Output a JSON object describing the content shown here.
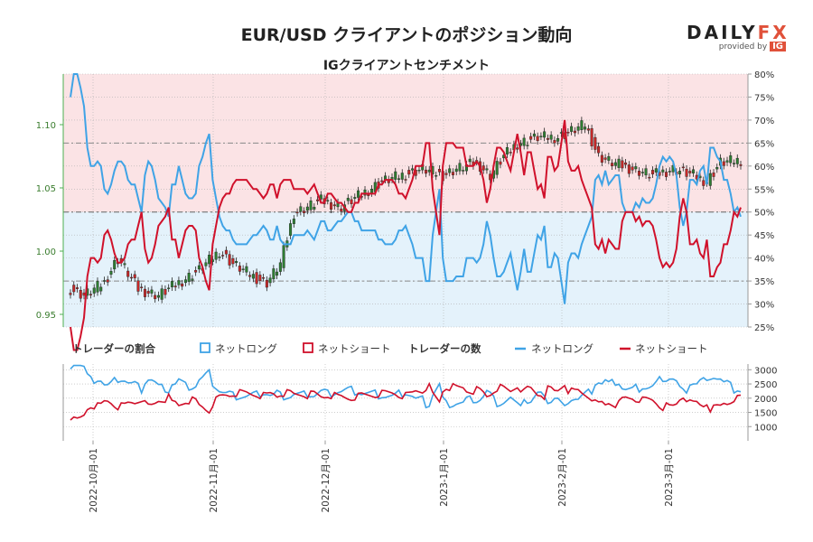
{
  "title": "EUR/USD クライアントのポジション動向",
  "subtitle": "IGクライアントセンチメント",
  "logo": {
    "brand_main": "DAILY",
    "brand_fx": "FX",
    "provided_by": "provided by",
    "ig": "IG"
  },
  "chart_data": [
    {
      "type": "candlestick+line",
      "title": "IGクライアントセンチメント",
      "left_axis": {
        "ticks": [
          "0.95",
          "1.00",
          "1.05",
          "1.10"
        ],
        "ylim": [
          0.94,
          1.14
        ]
      },
      "right_axis": {
        "ticks": [
          "25%",
          "30%",
          "35%",
          "40%",
          "45%",
          "50%",
          "55%",
          "60%",
          "65%",
          "70%",
          "75%",
          "80%"
        ],
        "ylim": [
          25,
          80
        ]
      },
      "reference_lines": [
        35,
        50,
        65
      ],
      "colors": {
        "long": "#3fa3e6",
        "short": "#d0112b",
        "candle_up": "#2e7d32",
        "candle_down": "#c62828",
        "long_bg": "#e4f2fb",
        "short_bg": "#fbe3e5"
      },
      "series": [
        {
          "name": "ネットロング",
          "values": [
            75,
            80,
            80,
            77,
            73,
            64,
            60,
            60,
            61,
            60,
            55,
            54,
            56,
            59,
            61,
            61,
            60,
            57,
            56,
            56,
            53,
            50,
            58,
            61,
            60,
            57,
            53,
            52,
            51,
            49,
            56,
            56,
            60,
            57,
            54,
            53,
            53,
            54,
            60,
            62,
            65,
            67,
            57,
            53,
            49,
            47,
            46,
            46,
            44,
            43,
            43,
            43,
            43,
            44,
            45,
            45,
            46,
            47,
            46,
            44,
            44,
            47,
            44,
            43,
            43,
            43,
            45,
            45,
            45,
            45,
            46,
            45,
            44,
            46,
            48,
            48,
            46,
            46,
            47,
            48,
            48,
            49,
            50,
            50,
            48,
            48,
            46,
            46,
            46,
            46,
            46,
            44,
            44,
            43,
            43,
            43,
            44,
            46,
            46,
            47,
            45,
            43,
            40,
            40,
            40,
            35,
            35,
            45,
            50,
            55,
            40,
            35,
            35,
            35,
            36,
            36,
            36,
            40,
            40,
            40,
            39,
            40,
            43,
            48,
            45,
            40,
            36,
            36,
            37,
            39,
            41,
            37,
            33,
            37,
            42,
            37,
            37,
            41,
            45,
            44,
            47,
            38,
            38,
            41,
            40,
            35,
            30,
            39,
            41,
            41,
            40,
            43,
            45,
            47,
            49,
            57,
            58,
            56,
            59,
            56,
            57,
            58,
            58,
            52,
            50,
            50,
            50,
            52,
            51,
            53,
            52,
            52,
            53,
            56,
            60,
            62,
            61,
            62,
            61,
            58,
            51,
            47,
            50,
            57,
            57,
            56,
            59,
            60,
            56,
            64,
            64,
            62,
            61,
            57,
            57,
            54,
            50,
            51,
            49
          ]
        },
        {
          "name": "ネットショート",
          "values": [
            25,
            20,
            20,
            23,
            27,
            36,
            40,
            40,
            39,
            40,
            45,
            46,
            44,
            41,
            39,
            39,
            40,
            43,
            44,
            44,
            47,
            50,
            42,
            39,
            40,
            43,
            47,
            48,
            49,
            51,
            44,
            44,
            40,
            43,
            46,
            47,
            47,
            46,
            40,
            38,
            35,
            33,
            43,
            47,
            51,
            53,
            54,
            54,
            56,
            57,
            57,
            57,
            57,
            56,
            55,
            55,
            54,
            53,
            54,
            56,
            56,
            53,
            56,
            57,
            57,
            57,
            55,
            55,
            55,
            55,
            54,
            55,
            56,
            54,
            52,
            52,
            54,
            54,
            53,
            52,
            52,
            51,
            50,
            50,
            52,
            52,
            54,
            54,
            54,
            54,
            54,
            56,
            56,
            57,
            57,
            57,
            56,
            54,
            54,
            53,
            55,
            57,
            60,
            60,
            60,
            65,
            65,
            55,
            50,
            45,
            60,
            65,
            65,
            65,
            64,
            64,
            64,
            60,
            60,
            60,
            61,
            60,
            57,
            52,
            55,
            60,
            64,
            64,
            63,
            61,
            59,
            63,
            67,
            63,
            58,
            63,
            63,
            59,
            55,
            56,
            53,
            62,
            62,
            59,
            60,
            65,
            70,
            61,
            59,
            59,
            60,
            57,
            55,
            53,
            51,
            43,
            42,
            44,
            41,
            44,
            43,
            42,
            42,
            48,
            50,
            50,
            50,
            48,
            49,
            47,
            48,
            48,
            47,
            44,
            40,
            38,
            39,
            38,
            39,
            42,
            49,
            53,
            50,
            43,
            43,
            44,
            41,
            40,
            44,
            36,
            36,
            38,
            39,
            43,
            43,
            46,
            50,
            49,
            51
          ]
        }
      ],
      "x_labels": [
        "2022-10月-01",
        "2022-11月-01",
        "2022-12月-01",
        "2023-1月-01",
        "2023-2月-01",
        "2023-3月-01"
      ]
    },
    {
      "type": "line",
      "right_axis": {
        "ticks": [
          "1000",
          "1500",
          "2000",
          "2500",
          "3000"
        ],
        "ylim": [
          500,
          3200
        ]
      }
    }
  ],
  "legend": {
    "ratio_title": "トレーダーの割合",
    "ratio_long": "ネットロング",
    "ratio_short": "ネットショート",
    "count_title": "トレーダーの数",
    "count_long": "ネットロング",
    "count_short": "ネットショート"
  }
}
